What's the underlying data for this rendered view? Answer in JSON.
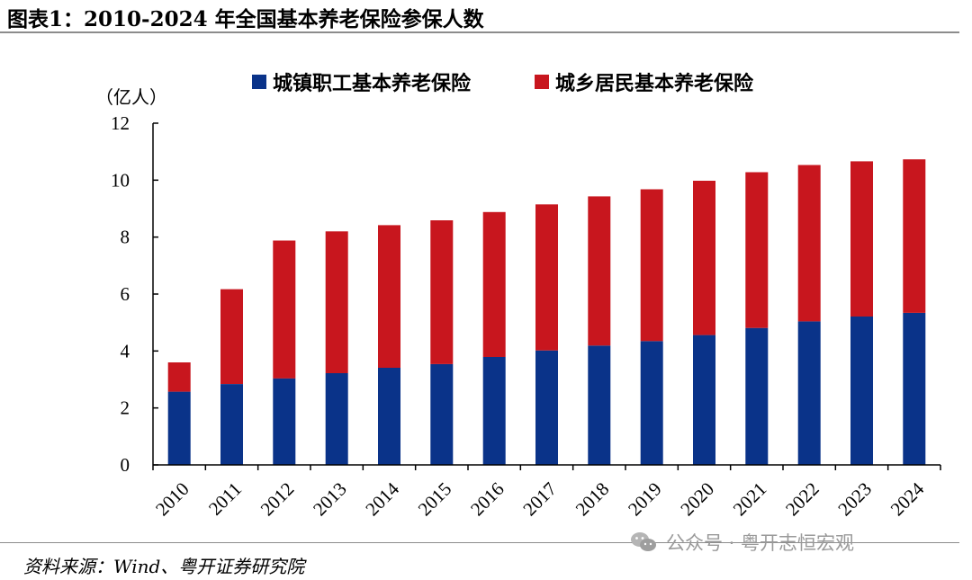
{
  "title": "图表1：2010-2024 年全国基本养老保险参保人数",
  "source": "资料来源：Wind、粤开证券研究院",
  "watermark": {
    "icon": "wechat-icon",
    "text": "公众号 · 粤开志恒宏观"
  },
  "colors": {
    "urban_employee": "#0a3389",
    "urban_rural_resident": "#c8161e",
    "axis": "#000000",
    "rule": "#8c8c8c"
  },
  "chart_data": {
    "type": "bar",
    "stacked": true,
    "unit_label": "（亿人）",
    "categories": [
      "2010",
      "2011",
      "2012",
      "2013",
      "2014",
      "2015",
      "2016",
      "2017",
      "2018",
      "2019",
      "2020",
      "2021",
      "2022",
      "2023",
      "2024"
    ],
    "series": [
      {
        "name": "城镇职工基本养老保险",
        "values": [
          2.57,
          2.84,
          3.04,
          3.22,
          3.41,
          3.54,
          3.79,
          4.02,
          4.19,
          4.35,
          4.56,
          4.81,
          5.04,
          5.21,
          5.34
        ]
      },
      {
        "name": "城乡居民基本养老保险",
        "values": [
          1.03,
          3.33,
          4.84,
          4.98,
          5.01,
          5.05,
          5.09,
          5.13,
          5.24,
          5.33,
          5.42,
          5.47,
          5.49,
          5.45,
          5.39
        ]
      }
    ],
    "ylim": [
      0,
      12
    ],
    "yticks": [
      "0",
      "2",
      "4",
      "6",
      "8",
      "10",
      "12"
    ],
    "legend_position": "top",
    "grid": false
  }
}
